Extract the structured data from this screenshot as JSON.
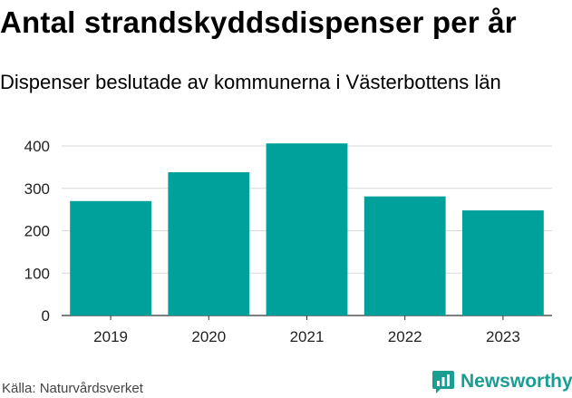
{
  "chart_data": {
    "type": "bar",
    "title": "Antal strandskyddsdispenser per år",
    "subtitle": "Dispenser beslutade av kommunerna i Västerbottens län",
    "categories": [
      "2019",
      "2020",
      "2021",
      "2022",
      "2023"
    ],
    "values": [
      270,
      338,
      406,
      281,
      248
    ],
    "ylim": [
      0,
      400
    ],
    "yticks": [
      0,
      100,
      200,
      300,
      400
    ],
    "xlabel": "",
    "ylabel": "",
    "grid": true,
    "bar_color": "#00a19a"
  },
  "source": "Källa: Naturvårdsverket",
  "brand": {
    "name": "Newsworthy",
    "color": "#1a9e92",
    "icon": "newsworthy-logo-icon"
  }
}
